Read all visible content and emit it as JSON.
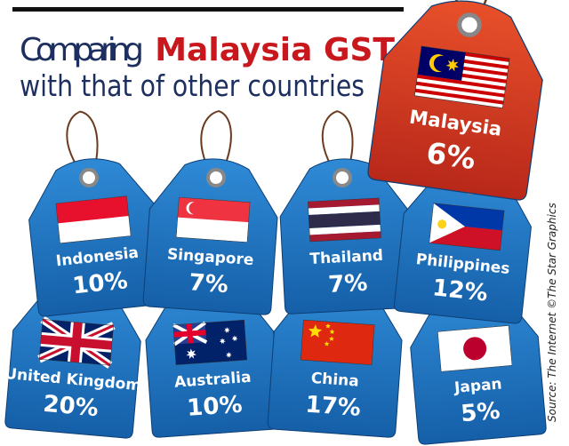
{
  "title": {
    "line1_prefix": "Comparing",
    "line1_highlight": "Malaysia GST",
    "line2": "with that of other countries"
  },
  "featured": {
    "country": "Malaysia",
    "rate": "6%"
  },
  "tags": [
    {
      "country": "Indonesia",
      "rate": "10%"
    },
    {
      "country": "Singapore",
      "rate": "7%"
    },
    {
      "country": "Thailand",
      "rate": "7%"
    },
    {
      "country": "Philippines",
      "rate": "12%"
    },
    {
      "country": "United Kingdom",
      "rate": "20%"
    },
    {
      "country": "Australia",
      "rate": "10%"
    },
    {
      "country": "China",
      "rate": "17%"
    },
    {
      "country": "Japan",
      "rate": "5%"
    }
  ],
  "source": "Source: The Internet ©The Star Graphics"
}
